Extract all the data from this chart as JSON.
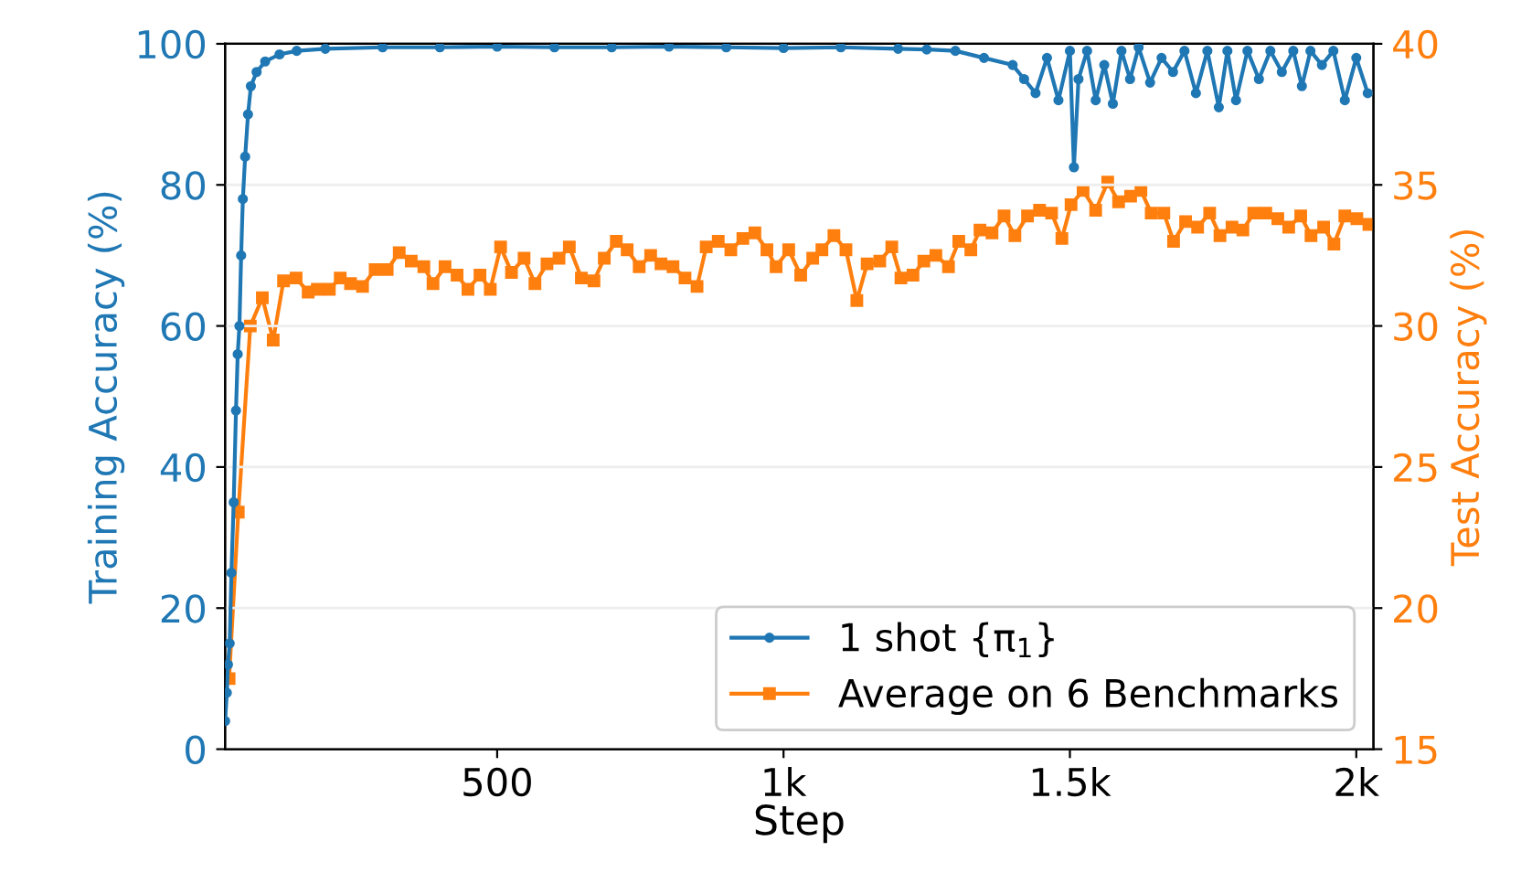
{
  "chart_data": {
    "type": "line",
    "xlabel": "Step",
    "ylabel": "Training Accuracy (%)",
    "y2label": "Test Accuracy (%)",
    "xlim": [
      25,
      2030
    ],
    "xticks": [
      500,
      {
        "value": 1000,
        "label": "1k"
      },
      {
        "value": 1500,
        "label": "1.5k"
      },
      {
        "value": 2000,
        "label": "2k"
      }
    ],
    "ylim": [
      0,
      100
    ],
    "yticks": [
      0,
      20,
      40,
      60,
      80,
      100
    ],
    "y2lim": [
      15,
      40
    ],
    "y2ticks": [
      15,
      20,
      25,
      30,
      35,
      40
    ],
    "grid": "y",
    "legend": "lower right",
    "series": [
      {
        "name": "1 shot {π$_{1}$}",
        "color": "#1f77b4",
        "marker": "circle",
        "x": [
          25,
          28,
          30,
          33,
          36,
          40,
          44,
          47,
          50,
          53,
          56,
          60,
          65,
          70,
          80,
          95,
          120,
          150,
          200,
          300,
          400,
          500,
          600,
          700,
          800,
          900,
          1000,
          1100,
          1200,
          1250,
          1300,
          1350,
          1400,
          1420,
          1440,
          1460,
          1480,
          1500,
          1507,
          1515,
          1530,
          1545,
          1560,
          1575,
          1590,
          1605,
          1620,
          1640,
          1660,
          1680,
          1700,
          1720,
          1740,
          1760,
          1775,
          1790,
          1810,
          1830,
          1850,
          1870,
          1890,
          1905,
          1920,
          1940,
          1960,
          1980,
          2000,
          2020
        ],
        "values": [
          4,
          8,
          12,
          15,
          25,
          35,
          48,
          56,
          60,
          70,
          78,
          84,
          90,
          94,
          96,
          97.5,
          98.5,
          99,
          99.3,
          99.5,
          99.5,
          99.6,
          99.5,
          99.5,
          99.6,
          99.5,
          99.4,
          99.5,
          99.3,
          99.2,
          99,
          98,
          97,
          95,
          93,
          98,
          92,
          99,
          82.5,
          95,
          99,
          92,
          97,
          91.5,
          99,
          95,
          99.5,
          94.5,
          98,
          96,
          99,
          93,
          99,
          91,
          99,
          92,
          99,
          95,
          99,
          96,
          99,
          94,
          99,
          97,
          99,
          92,
          98,
          93
        ]
      },
      {
        "name": "Average on 6 Benchmarks",
        "color": "#ff7f0e",
        "marker": "square",
        "axis": "y2",
        "x": [
          32,
          48,
          69,
          90,
          109,
          127,
          149,
          170,
          186,
          207,
          226,
          244,
          265,
          287,
          308,
          329,
          350,
          372,
          388,
          409,
          430,
          449,
          470,
          488,
          506,
          525,
          547,
          566,
          587,
          608,
          626,
          647,
          669,
          687,
          708,
          727,
          748,
          768,
          786,
          807,
          828,
          849,
          865,
          886,
          908,
          929,
          950,
          971,
          987,
          1009,
          1030,
          1051,
          1067,
          1088,
          1109,
          1128,
          1146,
          1168,
          1189,
          1205,
          1226,
          1245,
          1266,
          1288,
          1306,
          1327,
          1343,
          1364,
          1385,
          1404,
          1426,
          1447,
          1468,
          1486,
          1502,
          1523,
          1545,
          1566,
          1585,
          1606,
          1624,
          1642,
          1664,
          1681,
          1702,
          1723,
          1744,
          1762,
          1783,
          1802,
          1821,
          1842,
          1863,
          1882,
          1903,
          1921,
          1943,
          1961,
          1980,
          2001,
          2022
        ],
        "values": [
          17.5,
          23.4,
          30.0,
          31.0,
          29.5,
          31.6,
          31.7,
          31.2,
          31.3,
          31.3,
          31.7,
          31.5,
          31.4,
          32.0,
          32.0,
          32.6,
          32.3,
          32.1,
          31.5,
          32.1,
          31.8,
          31.3,
          31.8,
          31.3,
          32.8,
          31.9,
          32.4,
          31.5,
          32.2,
          32.4,
          32.8,
          31.7,
          31.6,
          32.4,
          33.0,
          32.7,
          32.1,
          32.5,
          32.2,
          32.1,
          31.7,
          31.4,
          32.8,
          33.0,
          32.7,
          33.1,
          33.3,
          32.7,
          32.1,
          32.7,
          31.8,
          32.4,
          32.7,
          33.2,
          32.7,
          30.9,
          32.2,
          32.3,
          32.8,
          31.7,
          31.8,
          32.3,
          32.5,
          32.1,
          33.0,
          32.7,
          33.4,
          33.3,
          33.9,
          33.2,
          33.9,
          34.1,
          34.0,
          33.1,
          34.3,
          34.8,
          34.1,
          35.1,
          34.4,
          34.6,
          34.8,
          34.0,
          34.0,
          33.0,
          33.7,
          33.5,
          34.0,
          33.2,
          33.5,
          33.4,
          34.0,
          34.0,
          33.8,
          33.5,
          33.9,
          33.2,
          33.5,
          32.9,
          33.9,
          33.8,
          33.6
        ]
      }
    ]
  }
}
